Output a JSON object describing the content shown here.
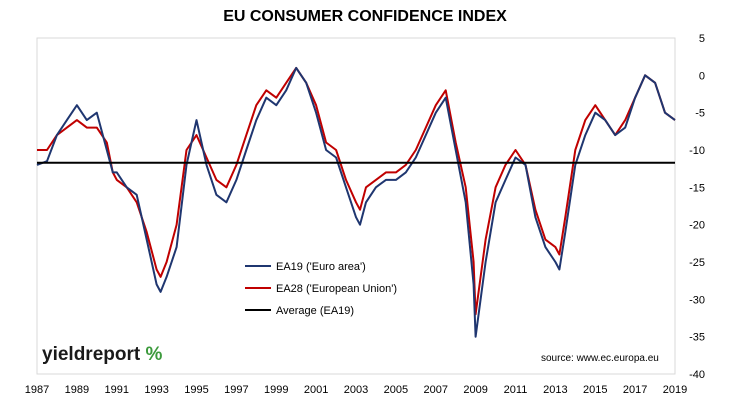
{
  "chart_data": {
    "type": "line",
    "title": "EU CONSUMER CONFIDENCE INDEX",
    "x_ticks": [
      "1987",
      "1989",
      "1991",
      "1993",
      "1995",
      "1997",
      "1999",
      "2001",
      "2003",
      "2005",
      "2007",
      "2009",
      "2011",
      "2013",
      "2015",
      "2017",
      "2019"
    ],
    "y_ticks": [
      "5",
      "0",
      "-5",
      "-10",
      "-15",
      "-20",
      "-25",
      "-30",
      "-35",
      "-40"
    ],
    "xlim": [
      1987,
      2019
    ],
    "ylim": [
      -40,
      5
    ],
    "y_axis_side": "right",
    "grid": false,
    "legend_position": "center-left",
    "series": [
      {
        "name": "EA19 ('Euro area')",
        "color": "#1f3670",
        "x": [
          1987,
          1987.5,
          1988,
          1988.5,
          1989,
          1989.5,
          1990,
          1990.5,
          1990.8,
          1991,
          1991.5,
          1992,
          1992.5,
          1993,
          1993.2,
          1993.5,
          1994,
          1994.5,
          1995,
          1995.5,
          1996,
          1996.5,
          1997,
          1997.5,
          1998,
          1998.5,
          1999,
          1999.5,
          2000,
          2000.5,
          2001,
          2001.5,
          2002,
          2002.5,
          2003,
          2003.2,
          2003.5,
          2004,
          2004.5,
          2005,
          2005.5,
          2006,
          2006.5,
          2007,
          2007.5,
          2008,
          2008.5,
          2008.9,
          2009,
          2009.5,
          2010,
          2010.5,
          2011,
          2011.5,
          2012,
          2012.5,
          2013,
          2013.2,
          2013.5,
          2014,
          2014.5,
          2015,
          2015.5,
          2016,
          2016.5,
          2017,
          2017.5,
          2018,
          2018.5,
          2019
        ],
        "values": [
          -12,
          -11.5,
          -8,
          -6,
          -4,
          -6,
          -5,
          -10,
          -13,
          -13,
          -15,
          -16,
          -22,
          -28,
          -29,
          -27,
          -23,
          -12,
          -6,
          -12,
          -16,
          -17,
          -14,
          -10,
          -6,
          -3,
          -4,
          -2,
          1,
          -1,
          -5,
          -10,
          -11,
          -15,
          -19,
          -20,
          -17,
          -15,
          -14,
          -14,
          -13,
          -11,
          -8,
          -5,
          -3,
          -10,
          -17,
          -28,
          -35,
          -25,
          -17,
          -14,
          -11,
          -12,
          -19,
          -23,
          -25,
          -26,
          -21,
          -12,
          -8,
          -5,
          -6,
          -8,
          -7,
          -3,
          0,
          -1,
          -5,
          -6
        ]
      },
      {
        "name": "EA28 ('European Union')",
        "color": "#c00000",
        "x": [
          1987,
          1987.5,
          1988,
          1988.5,
          1989,
          1989.5,
          1990,
          1990.5,
          1990.8,
          1991,
          1991.5,
          1992,
          1992.5,
          1993,
          1993.2,
          1993.5,
          1994,
          1994.5,
          1995,
          1995.5,
          1996,
          1996.5,
          1997,
          1997.5,
          1998,
          1998.5,
          1999,
          1999.5,
          2000,
          2000.5,
          2001,
          2001.5,
          2002,
          2002.5,
          2003,
          2003.2,
          2003.5,
          2004,
          2004.5,
          2005,
          2005.5,
          2006,
          2006.5,
          2007,
          2007.5,
          2008,
          2008.5,
          2008.9,
          2009,
          2009.5,
          2010,
          2010.5,
          2011,
          2011.5,
          2012,
          2012.5,
          2013,
          2013.2,
          2013.5,
          2014,
          2014.5,
          2015,
          2015.5,
          2016,
          2016.5,
          2017,
          2017.5,
          2018,
          2018.5,
          2019
        ],
        "values": [
          -10,
          -10,
          -8,
          -7,
          -6,
          -7,
          -7,
          -9,
          -13,
          -14,
          -15,
          -17,
          -21,
          -26,
          -27,
          -25,
          -20,
          -10,
          -8,
          -11,
          -14,
          -15,
          -12,
          -8,
          -4,
          -2,
          -3,
          -1,
          1,
          -1,
          -4,
          -9,
          -10,
          -14,
          -17,
          -18,
          -15,
          -14,
          -13,
          -13,
          -12,
          -10,
          -7,
          -4,
          -2,
          -9,
          -15,
          -25,
          -32,
          -22,
          -15,
          -12,
          -10,
          -12,
          -18,
          -22,
          -23,
          -24,
          -19,
          -10,
          -6,
          -4,
          -6,
          -8,
          -6,
          -3,
          0,
          -1,
          -5,
          -6
        ]
      },
      {
        "name": "Average (EA19)",
        "color": "#000000",
        "x": [
          1987,
          2019
        ],
        "values": [
          -11.7,
          -11.7
        ]
      }
    ]
  },
  "branding": {
    "logo_text": "yieldreport",
    "logo_symbol": "%",
    "source": "source: www.ec.europa.eu"
  }
}
